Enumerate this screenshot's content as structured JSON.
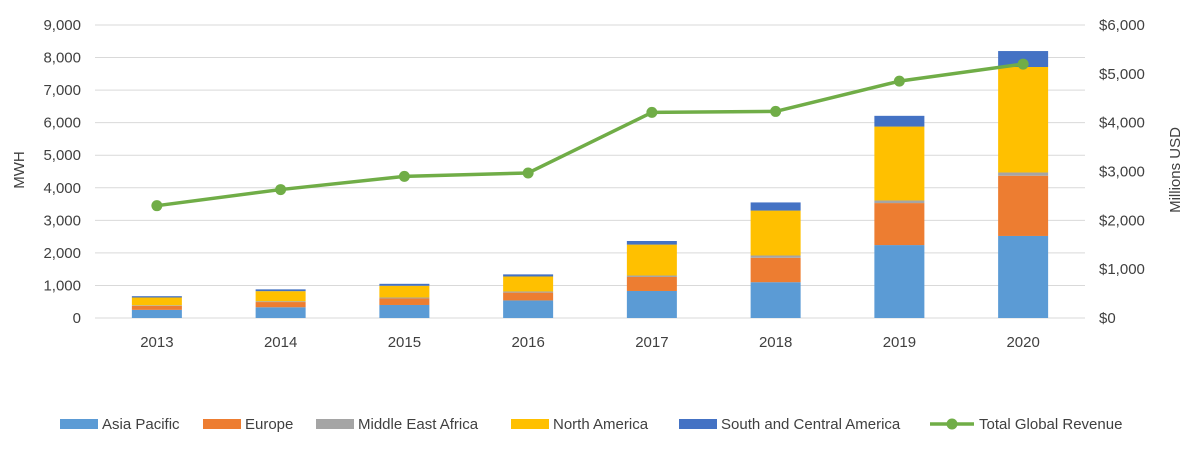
{
  "chart_data": {
    "type": "bar",
    "stacked": true,
    "categories": [
      "2013",
      "2014",
      "2015",
      "2016",
      "2017",
      "2018",
      "2019",
      "2020"
    ],
    "series": [
      {
        "name": "Asia Pacific",
        "color": "#5B9BD5",
        "values": [
          250,
          330,
          400,
          540,
          830,
          1100,
          2240,
          2520
        ]
      },
      {
        "name": "Europe",
        "color": "#ED7D31",
        "values": [
          120,
          160,
          200,
          240,
          430,
          750,
          1290,
          1850
        ]
      },
      {
        "name": "Middle East Africa",
        "color": "#A5A5A5",
        "values": [
          20,
          25,
          30,
          35,
          45,
          70,
          80,
          100
        ]
      },
      {
        "name": "North America",
        "color": "#FFC000",
        "values": [
          240,
          310,
          360,
          460,
          950,
          1380,
          2270,
          3240
        ]
      },
      {
        "name": "South and Central America",
        "color": "#4472C4",
        "values": [
          40,
          55,
          60,
          65,
          110,
          250,
          330,
          490
        ]
      }
    ],
    "line_series": {
      "name": "Total Global Revenue",
      "color": "#70AD47",
      "axis": "right",
      "values": [
        2300,
        2630,
        2900,
        2970,
        4210,
        4230,
        4850,
        5200
      ]
    },
    "ylabel": "MWH",
    "y2label": "Millions USD",
    "ylim": [
      0,
      9000
    ],
    "y2lim": [
      0,
      6000
    ],
    "yticks": [
      0,
      1000,
      2000,
      3000,
      4000,
      5000,
      6000,
      7000,
      8000,
      9000
    ],
    "ytick_labels": [
      "0",
      "1,000",
      "2,000",
      "3,000",
      "4,000",
      "5,000",
      "6,000",
      "7,000",
      "8,000",
      "9,000"
    ],
    "y2ticks": [
      0,
      1000,
      2000,
      3000,
      4000,
      5000,
      6000
    ],
    "y2tick_labels": [
      "$0",
      "$1,000",
      "$2,000",
      "$3,000",
      "$4,000",
      "$5,000",
      "$6,000"
    ],
    "grid": true,
    "legend_position": "bottom"
  }
}
